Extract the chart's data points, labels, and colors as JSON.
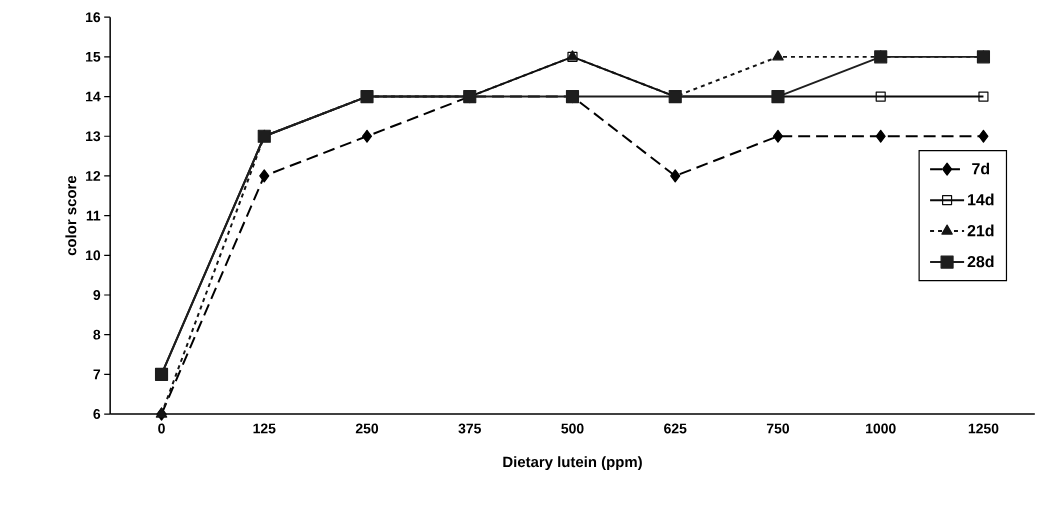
{
  "chart_data": {
    "type": "line",
    "xlabel": "Dietary lutein (ppm)",
    "ylabel": "color score",
    "categories": [
      "0",
      "125",
      "250",
      "375",
      "500",
      "625",
      "750",
      "1000",
      "1250"
    ],
    "series": [
      {
        "name": "7d",
        "color": "#000000",
        "marker": "diamond",
        "line_style": "dashed",
        "values": [
          6,
          12,
          13,
          14,
          14,
          12,
          13,
          13,
          13
        ]
      },
      {
        "name": "14d",
        "color": "#0a0a0a",
        "marker": "square",
        "line_style": "solid",
        "values": [
          7,
          13,
          14,
          14,
          15,
          14,
          14,
          14,
          14
        ]
      },
      {
        "name": "21d",
        "color": "#141414",
        "marker": "triangle",
        "line_style": "dotted",
        "values": [
          6,
          13,
          14,
          14,
          15,
          14,
          15,
          15,
          15
        ]
      },
      {
        "name": "28d",
        "color": "#1e1e1e",
        "marker": "square",
        "line_style": "solid",
        "values": [
          7,
          13,
          14,
          14,
          14,
          14,
          14,
          15,
          15
        ]
      }
    ],
    "ylim": [
      6,
      16
    ],
    "yticks": [
      6,
      7,
      8,
      9,
      10,
      11,
      12,
      13,
      14,
      15,
      16
    ],
    "grid": false,
    "legend": "right"
  }
}
